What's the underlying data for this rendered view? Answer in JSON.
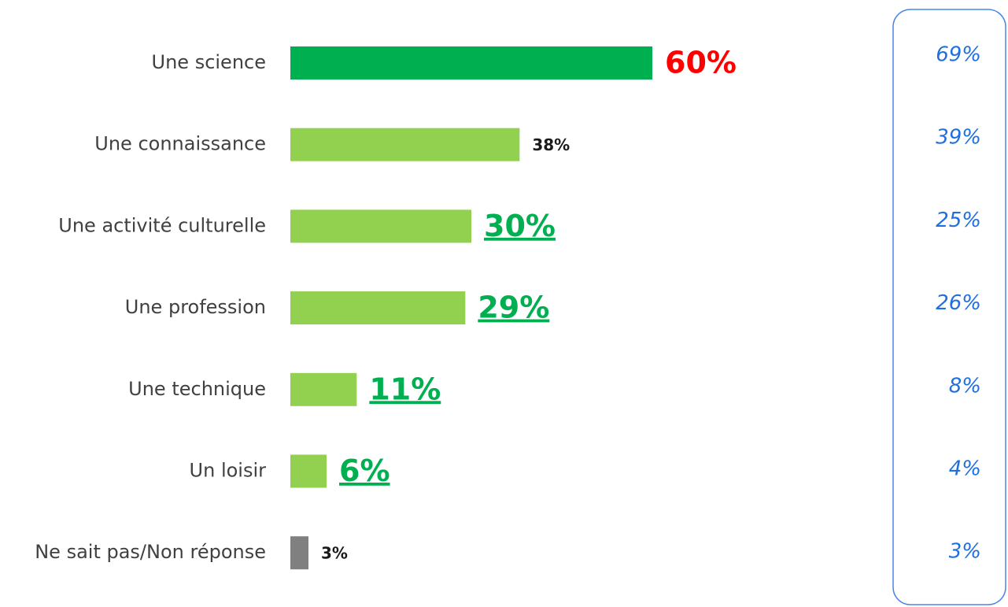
{
  "chart_data": {
    "type": "bar",
    "orientation": "horizontal",
    "categories": [
      "Une science",
      "Une connaissance",
      "Une activité culturelle",
      "Une profession",
      "Une technique",
      "Un loisir",
      "Ne sait pas/Non réponse"
    ],
    "values": [
      60,
      38,
      30,
      29,
      11,
      6,
      3
    ],
    "value_labels": [
      "60%",
      "38%",
      "30%",
      "29%",
      "11%",
      "6%",
      "3%"
    ],
    "colors": [
      "#00b050",
      "#92d050",
      "#92d050",
      "#92d050",
      "#92d050",
      "#92d050",
      "#808080"
    ],
    "value_label_colors": [
      "#ff0000",
      "#1a1a1a",
      "#00b050",
      "#00b050",
      "#00b050",
      "#00b050",
      "#1a1a1a"
    ],
    "value_label_styles": [
      "large",
      "small",
      "underline",
      "underline",
      "underline",
      "underline",
      "small"
    ],
    "comparison": {
      "values": [
        69,
        39,
        25,
        26,
        8,
        4,
        3
      ],
      "value_labels": [
        "69%",
        "39%",
        "25%",
        "26%",
        "8%",
        "4%",
        "3%"
      ],
      "color": "#1f6fe0"
    }
  }
}
